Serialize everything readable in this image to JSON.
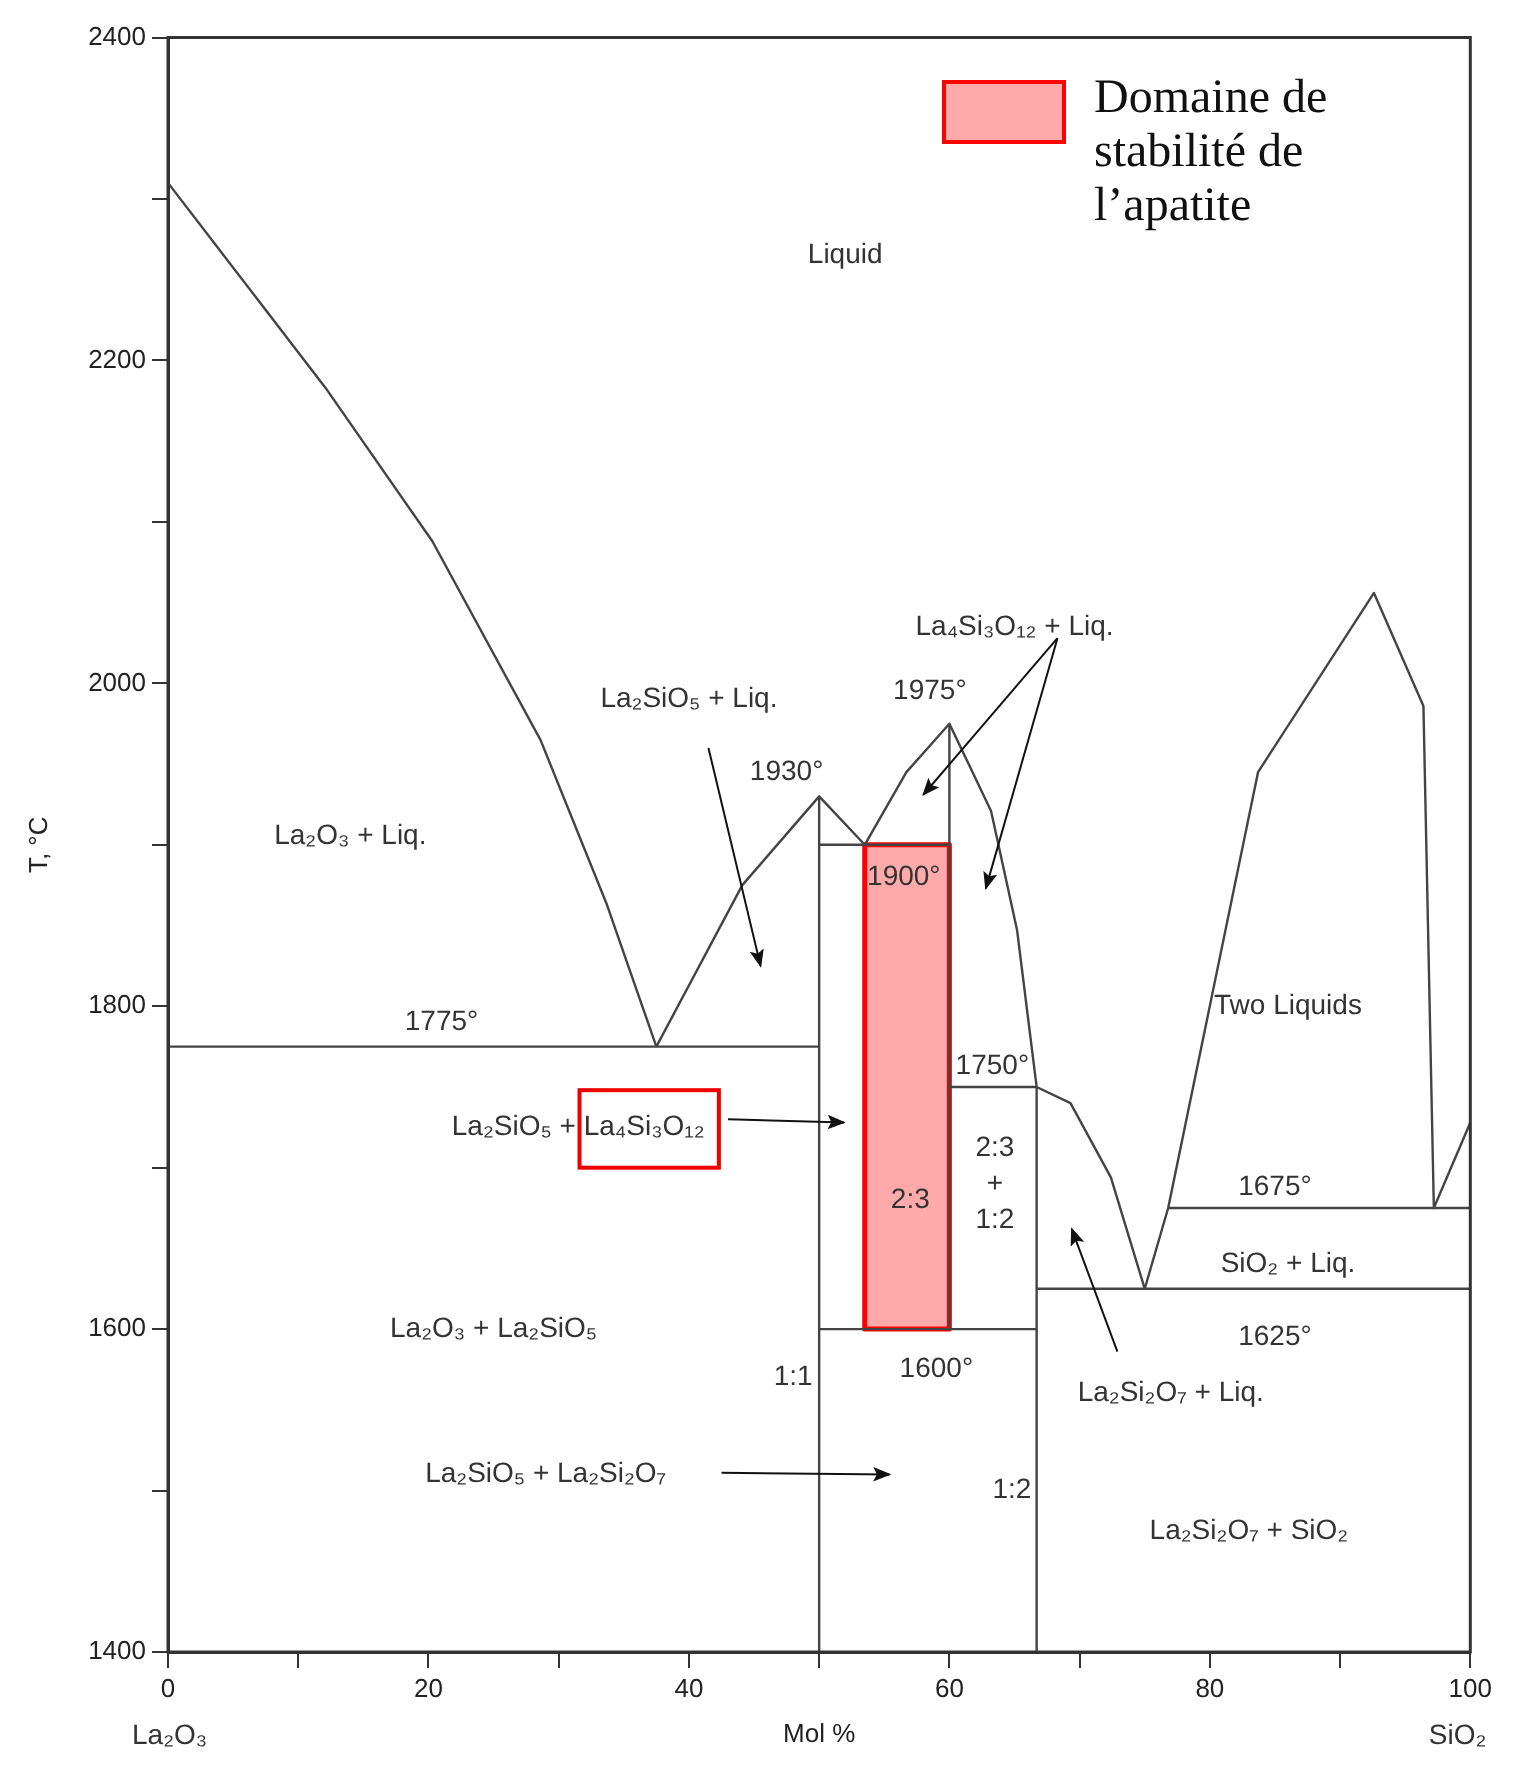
{
  "chart_data": {
    "type": "line",
    "xlabel": "Mol %",
    "ylabel": "T, °C",
    "xlim": [
      0,
      100
    ],
    "xticks": [
      0,
      {
        "value": 10,
        "label": null
      },
      20,
      {
        "value": 30,
        "label": null
      },
      40,
      {
        "value": 50,
        "label": null
      },
      60,
      {
        "value": 70,
        "label": null
      },
      80,
      {
        "value": 90,
        "label": null
      },
      100
    ],
    "ylim": [
      1400,
      2400
    ],
    "yticks": [
      1400,
      {
        "value": 1500,
        "label": null
      },
      1600,
      {
        "value": 1700,
        "label": null
      },
      1800,
      {
        "value": 1900,
        "label": null
      },
      2000,
      {
        "value": 2100,
        "label": null
      },
      2200,
      {
        "value": 2300,
        "label": null
      },
      2400
    ],
    "grid": false,
    "legend": "top right",
    "series": [
      {
        "color": "#444444",
        "x": [
          0,
          12.1,
          20.3,
          28.6,
          33.7,
          37.5
        ],
        "values": [
          2310,
          2183,
          2088,
          1965,
          1863,
          1775
        ]
      },
      {
        "color": "#444444",
        "x": [
          37.5,
          44.1,
          50,
          53.5,
          56.7,
          60,
          63.2,
          65.2,
          66.7,
          69.3,
          72.4,
          75
        ],
        "values": [
          1775,
          1875,
          1930,
          1900,
          1945,
          1975,
          1921,
          1847,
          1750,
          1740,
          1694,
          1625
        ]
      },
      {
        "color": "#444444",
        "x": [
          75,
          76.8,
          83.7,
          92.6,
          96.4,
          97.2,
          100
        ],
        "values": [
          1625,
          1675,
          1945,
          2056,
          1986,
          1675,
          1728
        ]
      },
      {
        "color": "#444444",
        "x": [
          0,
          50
        ],
        "values": [
          1775,
          1775
        ]
      },
      {
        "color": "#444444",
        "x": [
          50,
          60
        ],
        "values": [
          1900,
          1900
        ]
      },
      {
        "color": "#444444",
        "x": [
          60,
          60
        ],
        "values": [
          1600,
          1975
        ]
      },
      {
        "color": "#444444",
        "x": [
          60,
          66.7
        ],
        "values": [
          1750,
          1750
        ]
      },
      {
        "color": "#444444",
        "x": [
          50,
          66.7
        ],
        "values": [
          1600,
          1600
        ]
      },
      {
        "color": "#444444",
        "x": [
          66.7,
          100
        ],
        "values": [
          1625,
          1625
        ]
      },
      {
        "color": "#444444",
        "x": [
          76.8,
          100
        ],
        "values": [
          1675,
          1675
        ]
      },
      {
        "color": "#444444",
        "x": [
          50,
          50
        ],
        "values": [
          1400,
          1930
        ]
      },
      {
        "color": "#444444",
        "x": [
          66.7,
          66.7
        ],
        "values": [
          1400,
          1750
        ]
      },
      {
        "type": "area",
        "name": "Domaine de stabilité de l’apatite",
        "color": "#ff0000",
        "x": [
          53.5,
          60,
          60,
          53.5,
          53.5
        ],
        "values": [
          1600,
          1600,
          1900,
          1900,
          1600
        ]
      }
    ],
    "annotations": [
      "La₂O₃",
      "SiO₂",
      "Liquid",
      "La₂O₃ + Liq.",
      "La₂SiO₅ + Liq.",
      "La₄Si₃O₁₂ + Liq.",
      "Two Liquids",
      "La₂SiO₅ + La₄Si₃O₁₂",
      "La₂O₃ + La₂SiO₅",
      "La₂SiO₅ + La₂Si₂O₇",
      "SiO₂ + Liq.",
      "La₂Si₂O₇ + Liq.",
      "La₂Si₂O₇ + SiO₂",
      "1775°",
      "1930°",
      "1975°",
      "1900°",
      "1750°",
      "1675°",
      "1625°",
      "1600°",
      "1:1",
      "2:3",
      "2:3\n+\n1:2",
      "1:2"
    ]
  }
}
